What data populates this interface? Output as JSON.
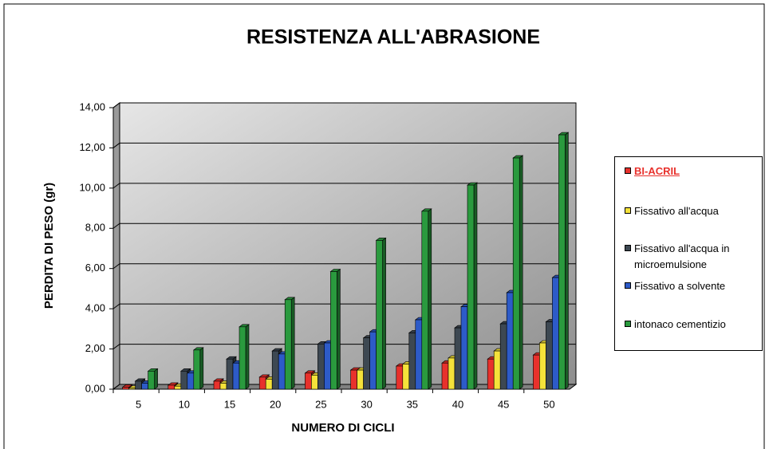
{
  "chart_data": {
    "type": "bar3d",
    "title": "RESISTENZA ALL'ABRASIONE",
    "x_label": "NUMERO DI CICLI",
    "y_label": "PERDITA DI PESO (gr)",
    "categories": [
      "5",
      "10",
      "15",
      "20",
      "25",
      "30",
      "35",
      "40",
      "45",
      "50"
    ],
    "series": [
      {
        "name": "BI-ACRIL",
        "color": "#e8312c",
        "values": [
          0.1,
          0.2,
          0.4,
          0.6,
          0.8,
          0.95,
          1.15,
          1.3,
          1.5,
          1.7
        ]
      },
      {
        "name": "Fissativo all'acqua",
        "color": "#f5e23a",
        "values": [
          0.05,
          0.15,
          0.3,
          0.5,
          0.7,
          0.95,
          1.25,
          1.55,
          1.9,
          2.3
        ]
      },
      {
        "name": "Fissativo all'acqua in microemulsione",
        "color": "#3d4852",
        "values": [
          0.4,
          0.9,
          1.5,
          1.9,
          2.25,
          2.55,
          2.8,
          3.05,
          3.25,
          3.35
        ]
      },
      {
        "name": "Fissativo a solvente",
        "color": "#2d5bc8",
        "values": [
          0.3,
          0.8,
          1.3,
          1.75,
          2.3,
          2.85,
          3.45,
          4.1,
          4.8,
          5.55
        ]
      },
      {
        "name": "intonaco cementizio",
        "color": "#2a9a3e",
        "values": [
          0.9,
          1.95,
          3.1,
          4.45,
          5.85,
          7.4,
          8.85,
          10.15,
          11.5,
          12.65
        ]
      }
    ],
    "ylim": [
      0,
      14
    ],
    "yticks": [
      {
        "value": 0,
        "label": "0,00"
      },
      {
        "value": 2,
        "label": "2,00"
      },
      {
        "value": 4,
        "label": "4,00"
      },
      {
        "value": 6,
        "label": "6,00"
      },
      {
        "value": 8,
        "label": "8,00"
      },
      {
        "value": 10,
        "label": "10,00"
      },
      {
        "value": 12,
        "label": "12,00"
      },
      {
        "value": 14,
        "label": "14,00"
      }
    ],
    "grid": true
  }
}
